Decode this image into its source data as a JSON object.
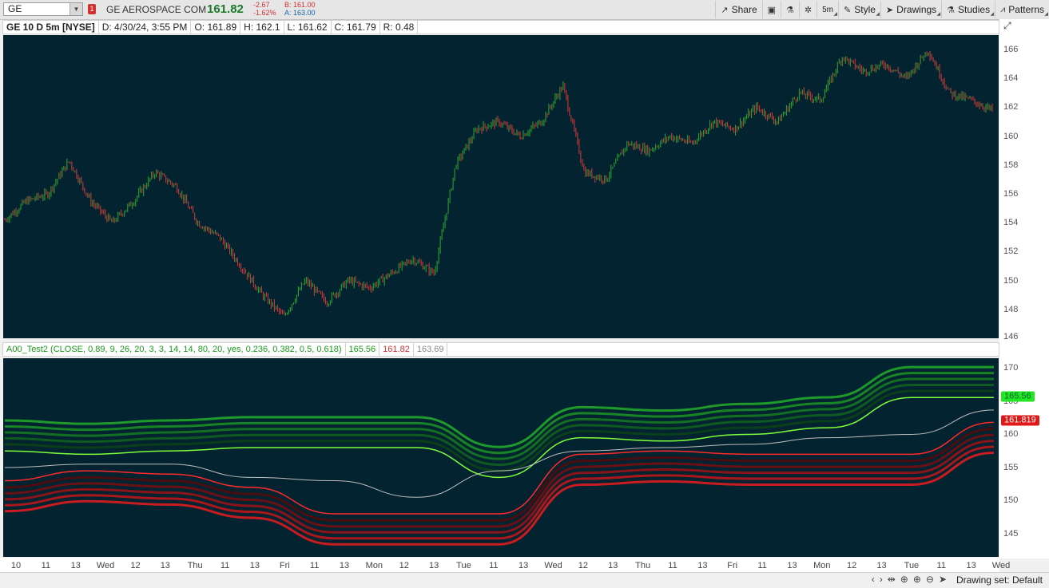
{
  "toolbar": {
    "symbol": "GE",
    "link_badge": "1",
    "company": "GE AEROSPACE COM",
    "last_price": "161.82",
    "change": "-2.67",
    "change_pct": "-1.62%",
    "bid": "B: 161.00",
    "ask": "A: 163.00",
    "share_label": "Share",
    "interval_label": "5m",
    "style_label": "Style",
    "drawings_label": "Drawings",
    "studies_label": "Studies",
    "patterns_label": "Patterns"
  },
  "header": {
    "title": "GE 10 D 5m [NYSE]",
    "date": "D: 4/30/24, 3:55 PM",
    "open": "O: 161.89",
    "high": "H: 162.1",
    "low": "L: 161.62",
    "close": "C: 161.79",
    "range": "R: 0.48"
  },
  "study": {
    "label": "A00_Test2 (CLOSE, 0.89, 9, 26, 20, 3, 3, 14, 14, 80, 20, yes, 0.236, 0.382, 0.5, 0.618)",
    "v1": "165.56",
    "v2": "161.82",
    "v3": "163.69",
    "box_upper": "165.56",
    "box_lower": "161.819"
  },
  "price_axis": [
    "166",
    "164",
    "162",
    "160",
    "158",
    "156",
    "154",
    "152",
    "150",
    "148",
    "146"
  ],
  "lower_axis": [
    "170",
    "165",
    "160",
    "155",
    "150",
    "145"
  ],
  "time_axis": [
    "10",
    "11",
    "13",
    "Wed",
    "12",
    "13",
    "Thu",
    "11",
    "13",
    "Fri",
    "11",
    "13",
    "Mon",
    "12",
    "13",
    "Tue",
    "11",
    "13",
    "Wed",
    "12",
    "13",
    "Thu",
    "11",
    "13",
    "Fri",
    "11",
    "13",
    "Mon",
    "12",
    "13",
    "Tue",
    "11",
    "13",
    "Wed"
  ],
  "status": {
    "drawing_set": "Drawing set: Default"
  },
  "colors": {
    "background": "#032330",
    "up_candle": "#2e9e2e",
    "down_candle": "#c83838",
    "upper_line": "#7cff3a",
    "lower_line": "#ff2a2a",
    "mid_line": "#bfbfbf"
  },
  "chart_data": {
    "type": "line",
    "price_series": {
      "name": "GE",
      "days": [
        "Tue",
        "Wed",
        "Thu",
        "Fri",
        "Mon",
        "Tue",
        "Wed",
        "Thu",
        "Fri",
        "Mon",
        "Tue"
      ],
      "close_path": [
        154.2,
        155.5,
        156.0,
        158.3,
        155.5,
        154.0,
        155.5,
        157.5,
        156.5,
        154.0,
        153.0,
        151.0,
        149.0,
        147.5,
        150.0,
        148.5,
        150.0,
        149.5,
        150.5,
        151.5,
        150.5,
        158.0,
        160.5,
        161.0,
        160.0,
        161.0,
        163.5,
        157.5,
        157.0,
        159.5,
        159.0,
        160.0,
        159.5,
        161.0,
        160.5,
        162.0,
        161.0,
        163.0,
        162.5,
        165.5,
        164.5,
        165.0,
        164.0,
        166.0,
        163.0,
        162.5,
        161.8
      ],
      "ylim": [
        146,
        167
      ]
    },
    "band_series": {
      "ylim": [
        141.5,
        171.5
      ],
      "upper": [
        157.5,
        157.0,
        157.5,
        158.0,
        158.0,
        158.0,
        153.5,
        159.5,
        159.0,
        160.0,
        161.0,
        165.56,
        165.56
      ],
      "middle": [
        155.0,
        155.5,
        155.5,
        153.5,
        153.0,
        150.5,
        154.5,
        157.5,
        158.0,
        158.5,
        159.5,
        160.0,
        163.69
      ],
      "lower": [
        153.0,
        154.5,
        154.0,
        152.0,
        148.0,
        148.0,
        148.0,
        157.0,
        157.5,
        157.0,
        157.0,
        157.0,
        161.819
      ]
    }
  }
}
